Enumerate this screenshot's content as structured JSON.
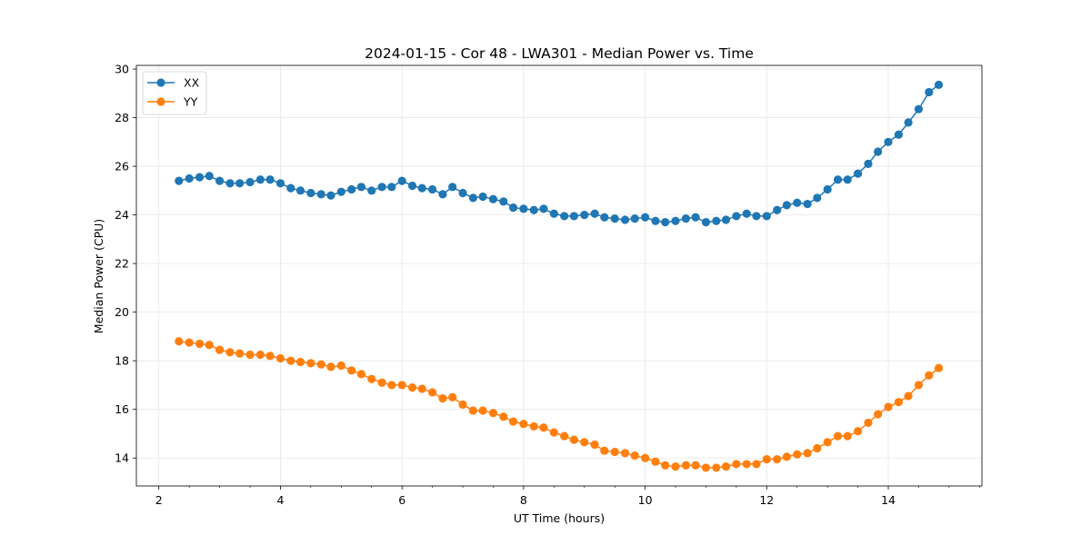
{
  "chart_data": {
    "type": "line",
    "title": "2024-01-15 - Cor 48 - LWA301 - Median Power vs. Time",
    "xlabel": "UT Time (hours)",
    "ylabel": "Median Power (CPU)",
    "xlim": [
      1.63,
      15.54
    ],
    "ylim": [
      12.85,
      30.15
    ],
    "xticks": [
      2,
      4,
      6,
      8,
      10,
      12,
      14
    ],
    "yticks": [
      14,
      16,
      18,
      20,
      22,
      24,
      26,
      28,
      30
    ],
    "grid": true,
    "legend_position": "upper-left",
    "x": [
      2.33,
      2.5,
      2.67,
      2.83,
      3.0,
      3.17,
      3.33,
      3.5,
      3.67,
      3.83,
      4.0,
      4.17,
      4.33,
      4.5,
      4.67,
      4.83,
      5.0,
      5.17,
      5.33,
      5.5,
      5.67,
      5.83,
      6.0,
      6.17,
      6.33,
      6.5,
      6.67,
      6.83,
      7.0,
      7.17,
      7.33,
      7.5,
      7.67,
      7.83,
      8.0,
      8.17,
      8.33,
      8.5,
      8.67,
      8.83,
      9.0,
      9.17,
      9.33,
      9.5,
      9.67,
      9.83,
      10.0,
      10.17,
      10.33,
      10.5,
      10.67,
      10.83,
      11.0,
      11.17,
      11.33,
      11.5,
      11.67,
      11.83,
      12.0,
      12.17,
      12.33,
      12.5,
      12.67,
      12.83,
      13.0,
      13.17,
      13.33,
      13.5,
      13.67,
      13.83,
      14.0,
      14.17,
      14.33,
      14.5,
      14.67,
      14.83
    ],
    "series": [
      {
        "name": "XX",
        "color": "#1f77b4",
        "values": [
          25.4,
          25.5,
          25.55,
          25.6,
          25.4,
          25.3,
          25.3,
          25.35,
          25.45,
          25.45,
          25.3,
          25.1,
          25.0,
          24.9,
          24.85,
          24.8,
          24.95,
          25.05,
          25.15,
          25.0,
          25.15,
          25.15,
          25.4,
          25.2,
          25.1,
          25.05,
          24.85,
          25.15,
          24.9,
          24.7,
          24.75,
          24.65,
          24.55,
          24.3,
          24.25,
          24.2,
          24.25,
          24.05,
          23.95,
          23.95,
          24.0,
          24.05,
          23.9,
          23.85,
          23.8,
          23.85,
          23.9,
          23.75,
          23.7,
          23.75,
          23.85,
          23.9,
          23.7,
          23.75,
          23.8,
          23.95,
          24.05,
          23.95,
          23.95,
          24.2,
          24.4,
          24.5,
          24.45,
          24.7,
          25.05,
          25.45,
          25.45,
          25.7,
          26.1,
          26.6,
          27.0,
          27.3,
          27.8,
          28.35,
          29.05,
          29.35
        ]
      },
      {
        "name": "YY",
        "color": "#ff7f0e",
        "values": [
          18.8,
          18.75,
          18.7,
          18.65,
          18.45,
          18.35,
          18.3,
          18.25,
          18.25,
          18.2,
          18.1,
          18.0,
          17.95,
          17.9,
          17.85,
          17.75,
          17.8,
          17.6,
          17.45,
          17.25,
          17.1,
          17.0,
          17.0,
          16.9,
          16.85,
          16.7,
          16.45,
          16.5,
          16.2,
          15.95,
          15.95,
          15.85,
          15.7,
          15.5,
          15.4,
          15.3,
          15.25,
          15.05,
          14.9,
          14.75,
          14.65,
          14.55,
          14.3,
          14.25,
          14.2,
          14.1,
          14.0,
          13.85,
          13.7,
          13.65,
          13.7,
          13.7,
          13.6,
          13.6,
          13.65,
          13.75,
          13.75,
          13.75,
          13.95,
          13.95,
          14.05,
          14.15,
          14.2,
          14.4,
          14.65,
          14.9,
          14.9,
          15.1,
          15.45,
          15.8,
          16.1,
          16.3,
          16.55,
          17.0,
          17.4,
          17.7
        ]
      }
    ]
  }
}
